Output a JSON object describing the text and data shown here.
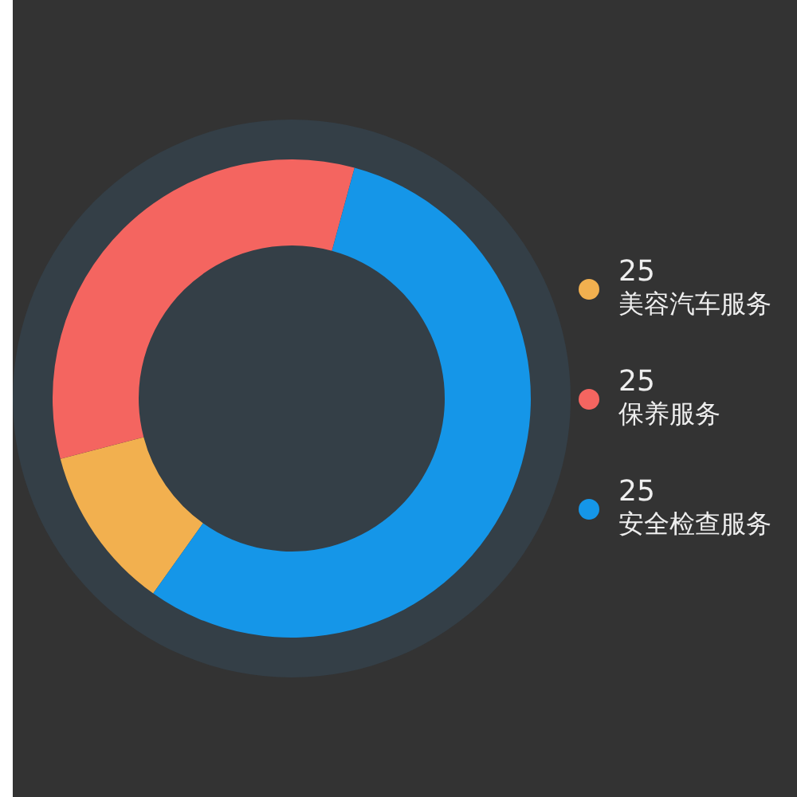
{
  "chart_data": {
    "type": "donut",
    "categories": [
      "美容汽车服务",
      "保养服务",
      "安全检查服务"
    ],
    "values": [
      11.1,
      33.3,
      55.6
    ],
    "colors": [
      "#f2b04f",
      "#f46560",
      "#1596e8"
    ],
    "annotations": [
      "25",
      "25",
      "25"
    ],
    "legend": "right"
  }
}
